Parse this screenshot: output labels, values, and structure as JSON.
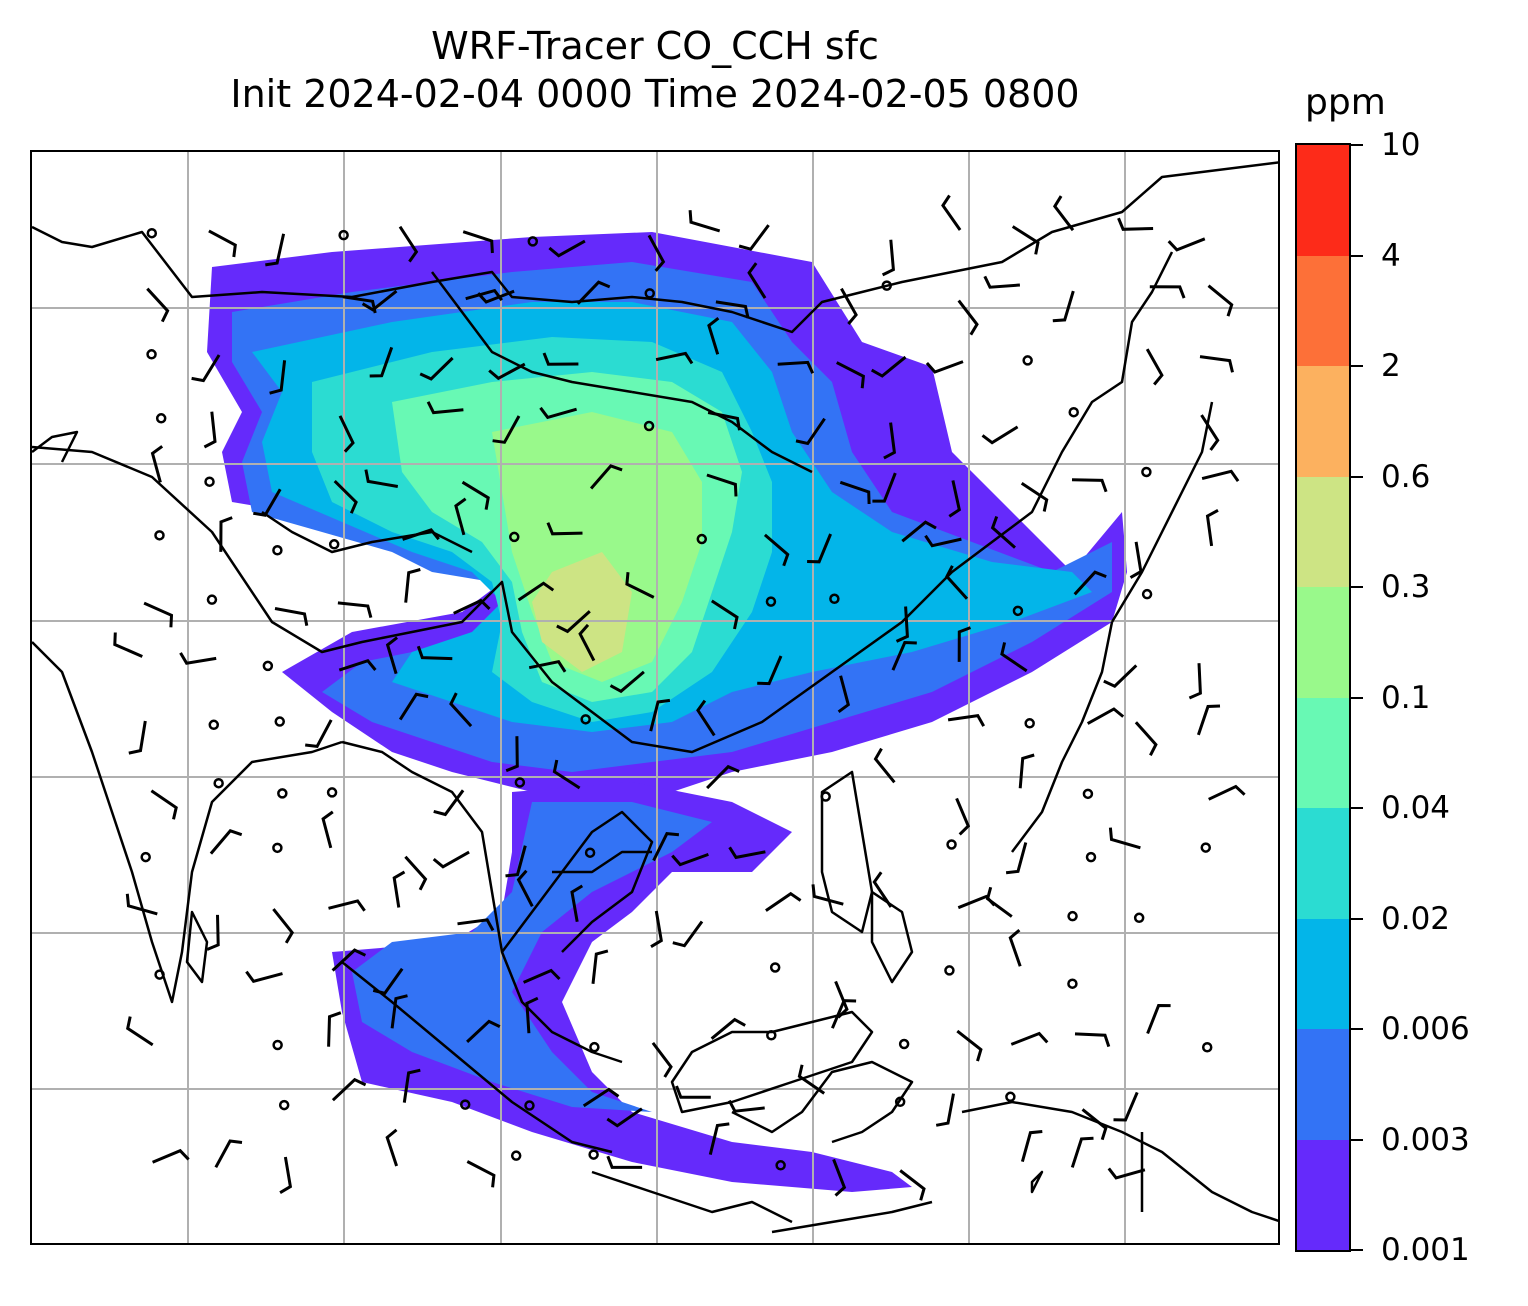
{
  "title": {
    "line1": "WRF-Tracer CO_CCH sfc",
    "line2": "Init 2024-02-04 0000 Time 2024-02-05 0800"
  },
  "colorbar": {
    "unit": "ppm",
    "levels": [
      "0.001",
      "0.003",
      "0.006",
      "0.02",
      "0.04",
      "0.1",
      "0.3",
      "0.6",
      "2",
      "4",
      "10"
    ],
    "colors": [
      "#652afb",
      "#3373f5",
      "#03b5e9",
      "#2bdcd2",
      "#68f9b4",
      "#99f98b",
      "#cde484",
      "#fcb15f",
      "#fd7038",
      "#fd2b19"
    ]
  },
  "map": {
    "gridlines": true,
    "gridline_color": "#b0b0b0",
    "coastline_color": "#000000",
    "overlay": "wind-barbs",
    "calm_marker": "circle"
  }
}
